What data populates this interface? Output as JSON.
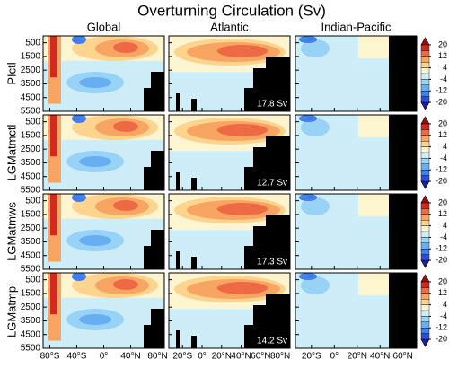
{
  "chart_data": {
    "type": "contour",
    "title": "Overturning Circulation (Sv)",
    "columns": [
      "Global",
      "Atlantic",
      "Indian-Pacific"
    ],
    "rows": [
      {
        "label": "PIctl",
        "amoc": "17.8 Sv"
      },
      {
        "label": "LGMatmctl",
        "amoc": "12.7 Sv"
      },
      {
        "label": "LGMatmws",
        "amoc": "17.3 Sv"
      },
      {
        "label": "LGMatmpi",
        "amoc": "14.2 Sv"
      }
    ],
    "ylim": [
      0,
      5500
    ],
    "yticks": [
      500,
      1500,
      2500,
      3500,
      4500,
      5500
    ],
    "xaxes": [
      {
        "xlim": [
          -90,
          90
        ],
        "xticks": [
          {
            "value": -80,
            "label": "80°S"
          },
          {
            "value": -40,
            "label": "40°S"
          },
          {
            "value": 0,
            "label": "0°"
          },
          {
            "value": 40,
            "label": "40°N"
          },
          {
            "value": 80,
            "label": "80°N"
          }
        ]
      },
      {
        "xlim": [
          -34,
          90
        ],
        "xticks": [
          {
            "value": -20,
            "label": "20°S"
          },
          {
            "value": 0,
            "label": "0°"
          },
          {
            "value": 20,
            "label": "20°N"
          },
          {
            "value": 40,
            "label": "40°N"
          },
          {
            "value": 60,
            "label": "60°N"
          },
          {
            "value": 80,
            "label": "80°N"
          }
        ]
      },
      {
        "xlim": [
          -34,
          72
        ],
        "xticks": [
          {
            "value": -20,
            "label": "20°S"
          },
          {
            "value": 0,
            "label": "0°"
          },
          {
            "value": 20,
            "label": "20°N"
          },
          {
            "value": 40,
            "label": "40°N"
          },
          {
            "value": 60,
            "label": "60°N"
          }
        ]
      }
    ],
    "colorbar": {
      "ylim": [
        -20,
        20
      ],
      "yticks": [
        20,
        12,
        4,
        -4,
        -12,
        -20
      ],
      "colors": [
        "#1c1ca8",
        "#2a4fd6",
        "#3f80ea",
        "#68aef2",
        "#98d2f6",
        "#cdeef9",
        "#fdf5cf",
        "#fcd48e",
        "#f8a463",
        "#ee6a44",
        "#d4291f",
        "#9c0d12"
      ]
    }
  }
}
